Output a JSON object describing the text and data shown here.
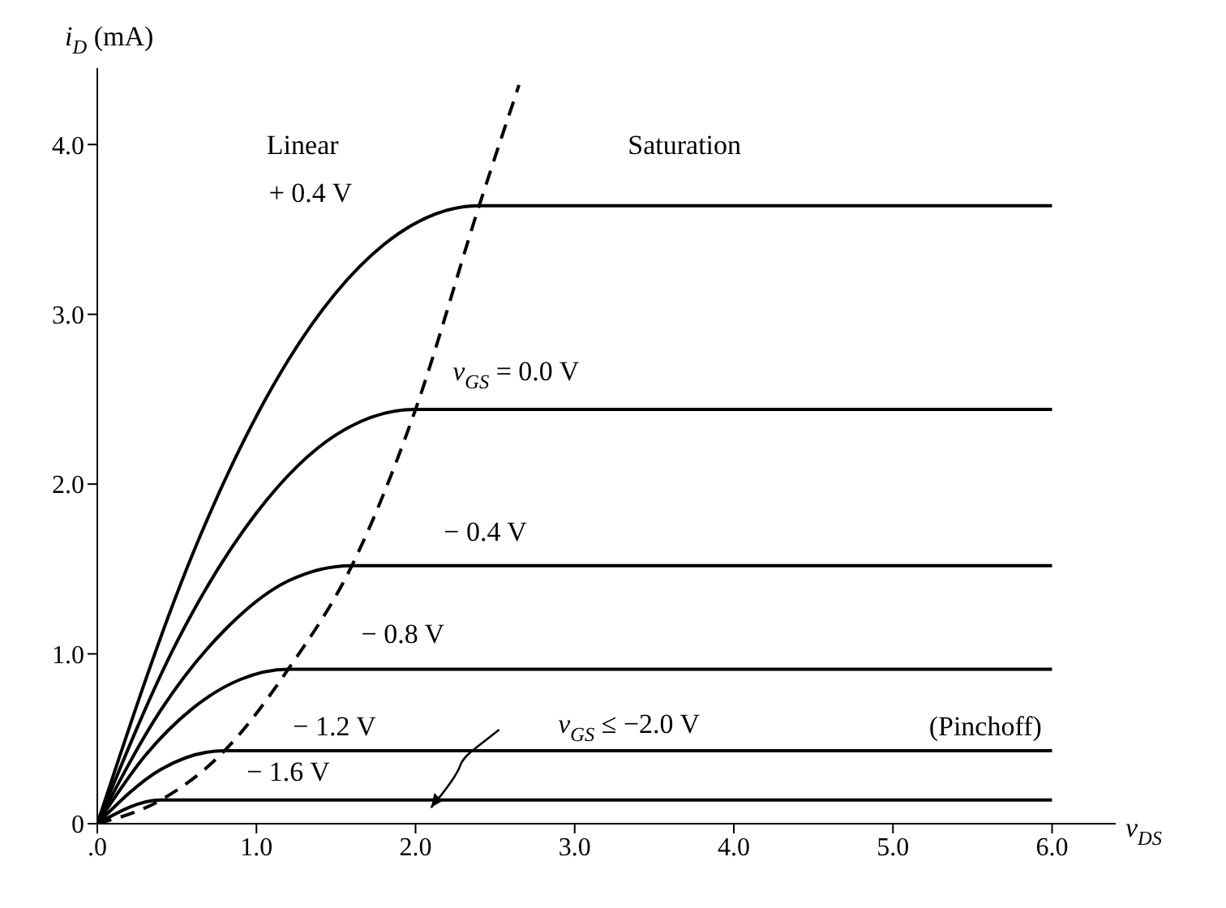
{
  "chart_data": {
    "type": "line",
    "xlabel": "v$_{DS}$",
    "ylabel": "i$_{D}$ (mA)",
    "series": [
      {
        "color": "#000000",
        "x": [
          0,
          0.6,
          1.2,
          1.8,
          2.4,
          6
        ],
        "values": [
          0,
          1.59,
          2.73,
          3.41,
          3.64,
          3.64
        ]
      },
      {
        "color": "#000000",
        "x": [
          0,
          0.5,
          1.0,
          1.5,
          2.0,
          6
        ],
        "values": [
          0,
          1.07,
          1.83,
          2.29,
          2.44,
          2.44
        ]
      },
      {
        "color": "#000000",
        "x": [
          0,
          0.4,
          0.8,
          1.2,
          1.6,
          6
        ],
        "values": [
          0,
          0.67,
          1.14,
          1.43,
          1.52,
          1.52
        ]
      },
      {
        "color": "#000000",
        "x": [
          0,
          0.3,
          0.6,
          0.9,
          1.2,
          6
        ],
        "values": [
          0,
          0.4,
          0.68,
          0.85,
          0.91,
          0.91
        ]
      },
      {
        "color": "#000000",
        "x": [
          0,
          0.4,
          0.8,
          6
        ],
        "values": [
          0,
          0.32,
          0.43,
          0.43
        ]
      },
      {
        "color": "#000000",
        "x": [
          0,
          0.4,
          6
        ],
        "values": [
          0,
          0.14,
          0.14
        ]
      },
      {
        "color": "#000000",
        "line_style": "dashed",
        "x": [
          0,
          0.4,
          0.8,
          1.2,
          1.6,
          2.0,
          2.4,
          2.65
        ],
        "values": [
          0,
          0.14,
          0.43,
          0.91,
          1.52,
          2.44,
          3.64,
          4.35
        ]
      }
    ],
    "xlim": [
      0,
      6.4
    ],
    "xticks": [
      {
        "value": 0,
        "label": ".0"
      },
      {
        "value": 1,
        "label": "1.0"
      },
      {
        "value": 2,
        "label": "2.0"
      },
      {
        "value": 3,
        "label": "3.0"
      },
      {
        "value": 4,
        "label": "4.0"
      },
      {
        "value": 5,
        "label": "5.0"
      },
      {
        "value": 6,
        "label": "6.0"
      }
    ],
    "ylim": [
      0,
      4.45
    ],
    "yticks": [
      0,
      {
        "value": 1,
        "label": "1.0"
      },
      {
        "value": 2,
        "label": "2.0"
      },
      {
        "value": 3,
        "label": "3.0"
      },
      {
        "value": 4,
        "label": "4.0"
      }
    ],
    "annotations": [
      "Linear",
      "Saturation",
      "+ 0.4 V",
      "v$_{GS}$ = 0.0 V",
      "− 0.4 V",
      "− 0.8 V",
      "− 1.2 V",
      "− 1.6 V",
      "v$_{GS}$ ≤ −2.0 V",
      "(Pinchoff)"
    ]
  }
}
